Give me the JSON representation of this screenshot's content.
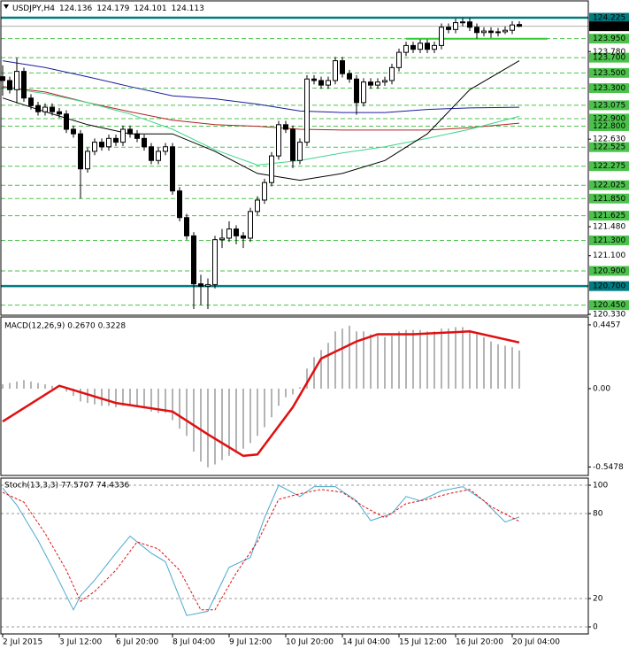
{
  "chart_data": [
    {
      "type": "candlestick",
      "title": "USDJPY,H4",
      "categories": [
        "2 Jul 2015",
        null,
        null,
        null,
        null,
        null,
        null,
        null,
        "3 Jul 12:00",
        null,
        null,
        null,
        null,
        null,
        null,
        null,
        "6 Jul 20:00",
        null,
        null,
        null,
        null,
        null,
        null,
        null,
        "8 Jul 04:00",
        null,
        null,
        null,
        null,
        null,
        null,
        null,
        "9 Jul 12:00",
        null,
        null,
        null,
        null,
        null,
        null,
        null,
        "10 Jul 20:00",
        null,
        null,
        null,
        null,
        null,
        null,
        null,
        "14 Jul 04:00",
        null,
        null,
        null,
        null,
        null,
        null,
        null,
        "15 Jul 12:00",
        null,
        null,
        null,
        null,
        null,
        null,
        null,
        "16 Jul 20:00",
        null,
        null,
        null,
        null,
        null,
        null,
        null,
        "20 Jul 04:00",
        null
      ],
      "open": [
        123.45,
        123.4,
        123.28,
        123.52,
        123.17,
        123.07,
        122.99,
        123.05,
        122.99,
        122.96,
        122.76,
        122.7,
        122.24,
        122.47,
        122.59,
        122.53,
        122.64,
        122.59,
        122.76,
        122.7,
        122.64,
        122.53,
        122.35,
        122.47,
        122.53,
        121.95,
        121.6,
        121.36,
        120.73,
        120.7,
        120.72,
        121.31,
        121.33,
        121.45,
        121.36,
        121.33,
        121.68,
        121.83,
        122.06,
        122.41,
        122.82,
        122.76,
        122.35,
        122.59,
        123.42,
        123.4,
        123.34,
        123.4,
        123.66,
        123.49,
        123.42,
        123.11,
        123.38,
        123.34,
        123.38,
        123.4,
        123.57,
        123.77,
        123.86,
        123.81,
        123.89,
        123.81,
        123.86,
        124.1,
        124.07,
        124.16,
        124.17,
        124.1,
        124.03,
        124.05,
        124.03,
        124.04,
        124.06,
        124.136
      ],
      "high": [
        123.6,
        123.45,
        123.7,
        123.57,
        123.22,
        123.12,
        123.1,
        123.1,
        123.04,
        123.01,
        122.81,
        122.75,
        122.52,
        122.64,
        122.64,
        122.69,
        122.69,
        122.81,
        122.81,
        122.75,
        122.69,
        122.58,
        122.52,
        122.58,
        122.58,
        122.0,
        121.65,
        121.41,
        120.85,
        120.8,
        121.36,
        121.45,
        121.55,
        121.5,
        121.41,
        121.73,
        121.88,
        122.11,
        122.46,
        122.87,
        122.87,
        122.81,
        122.64,
        123.47,
        123.47,
        123.45,
        123.45,
        123.71,
        123.71,
        123.54,
        123.47,
        123.43,
        123.43,
        123.43,
        123.45,
        123.62,
        123.82,
        123.91,
        123.91,
        123.94,
        123.94,
        123.91,
        124.15,
        124.15,
        124.21,
        124.22,
        124.22,
        124.15,
        124.1,
        124.1,
        124.09,
        124.11,
        124.18,
        124.179
      ],
      "low": [
        123.2,
        123.23,
        123.1,
        123.12,
        123.02,
        122.94,
        122.94,
        122.94,
        122.91,
        122.71,
        122.65,
        121.85,
        122.19,
        122.42,
        122.48,
        122.48,
        122.54,
        122.54,
        122.65,
        122.59,
        122.48,
        122.3,
        122.3,
        122.42,
        121.9,
        121.55,
        121.31,
        120.4,
        120.45,
        120.4,
        120.67,
        121.2,
        121.28,
        121.25,
        121.2,
        121.28,
        121.63,
        121.78,
        122.01,
        122.36,
        122.71,
        122.25,
        122.3,
        122.54,
        123.35,
        123.29,
        123.29,
        123.35,
        123.44,
        123.37,
        122.95,
        123.06,
        123.29,
        123.29,
        123.33,
        123.35,
        123.52,
        123.72,
        123.76,
        123.76,
        123.76,
        123.76,
        123.81,
        124.02,
        124.02,
        124.11,
        124.05,
        123.95,
        123.98,
        123.96,
        123.98,
        124.01,
        124.01,
        124.101
      ],
      "close": [
        123.4,
        123.28,
        123.52,
        123.17,
        123.07,
        122.99,
        123.05,
        122.99,
        122.96,
        122.76,
        122.7,
        122.24,
        122.47,
        122.59,
        122.53,
        122.64,
        122.59,
        122.76,
        122.7,
        122.64,
        122.53,
        122.35,
        122.47,
        122.53,
        121.95,
        121.6,
        121.36,
        120.73,
        120.7,
        120.72,
        121.31,
        121.33,
        121.45,
        121.36,
        121.33,
        121.68,
        121.83,
        122.06,
        122.41,
        122.82,
        122.76,
        122.35,
        122.59,
        123.42,
        123.4,
        123.34,
        123.4,
        123.66,
        123.49,
        123.42,
        123.11,
        123.38,
        123.34,
        123.38,
        123.4,
        123.57,
        123.77,
        123.86,
        123.81,
        123.89,
        123.81,
        123.86,
        124.1,
        124.07,
        124.16,
        124.17,
        124.1,
        124.03,
        124.05,
        124.03,
        124.04,
        124.06,
        124.13,
        124.113
      ],
      "ylim": [
        120.318,
        124.446
      ],
      "yticks": [
        {
          "value": 123.78,
          "label": "123.780"
        },
        {
          "value": 122.63,
          "label": "122.630"
        },
        {
          "value": 121.48,
          "label": "121.480"
        },
        {
          "value": 121.1,
          "label": "121.100"
        },
        {
          "value": 120.33,
          "label": "120.330"
        }
      ],
      "levels": [
        {
          "value": 124.225,
          "label": "124.225",
          "color": "#007b80",
          "style": "solid"
        },
        {
          "value": 123.95,
          "label": "123.950",
          "color": "#4cc24c",
          "style": "dash"
        },
        {
          "value": 123.7,
          "label": "123.700",
          "color": "#4cc24c",
          "style": "dash"
        },
        {
          "value": 123.5,
          "label": "123.500",
          "color": "#4cc24c",
          "style": "dash"
        },
        {
          "value": 123.3,
          "label": "123.300",
          "color": "#4cc24c",
          "style": "dash"
        },
        {
          "value": 123.075,
          "label": "123.075",
          "color": "#4cc24c",
          "style": "dash"
        },
        {
          "value": 122.9,
          "label": "122.900",
          "color": "#4cc24c",
          "style": "dash"
        },
        {
          "value": 122.8,
          "label": "122.800",
          "color": "#4cc24c",
          "style": "dash"
        },
        {
          "value": 122.525,
          "label": "122.525",
          "color": "#4cc24c",
          "style": "dash"
        },
        {
          "value": 122.275,
          "label": "122.275",
          "color": "#4cc24c",
          "style": "dash"
        },
        {
          "value": 122.025,
          "label": "122.025",
          "color": "#4cc24c",
          "style": "dash"
        },
        {
          "value": 121.85,
          "label": "121.850",
          "color": "#4cc24c",
          "style": "dash"
        },
        {
          "value": 121.625,
          "label": "121.625",
          "color": "#4cc24c",
          "style": "dash"
        },
        {
          "value": 121.3,
          "label": "121.300",
          "color": "#4cc24c",
          "style": "dash"
        },
        {
          "value": 120.9,
          "label": "120.900",
          "color": "#4cc24c",
          "style": "dash"
        },
        {
          "value": 120.7,
          "label": "120.700",
          "color": "#007b80",
          "style": "solid"
        },
        {
          "value": 120.45,
          "label": "120.450",
          "color": "#4cc24c",
          "style": "dash"
        }
      ],
      "segments": [
        {
          "x": [
            57,
            77
          ],
          "values": [
            123.95,
            123.95
          ],
          "color": "#33cc33"
        }
      ],
      "overlays": [
        {
          "color": "#1c1c9c",
          "x": [
            0,
            6,
            12,
            18,
            24,
            30,
            36,
            42,
            48,
            54,
            60,
            66,
            73
          ],
          "values": [
            123.66,
            123.57,
            123.45,
            123.32,
            123.2,
            123.16,
            123.09,
            123.0,
            122.98,
            122.98,
            123.02,
            123.04,
            123.05
          ]
        },
        {
          "color": "#b22222",
          "x": [
            0,
            6,
            12,
            18,
            24,
            30,
            36,
            42,
            48,
            54,
            60,
            66,
            73
          ],
          "values": [
            123.32,
            123.25,
            123.11,
            122.99,
            122.88,
            122.82,
            122.8,
            122.76,
            122.75,
            122.75,
            122.75,
            122.78,
            122.84
          ]
        },
        {
          "color": "#3cd68c",
          "x": [
            0,
            6,
            12,
            18,
            24,
            30,
            36,
            42,
            48,
            54,
            60,
            66,
            73
          ],
          "values": [
            123.31,
            123.23,
            123.11,
            122.96,
            122.76,
            122.49,
            122.29,
            122.35,
            122.45,
            122.53,
            122.64,
            122.76,
            122.93
          ]
        },
        {
          "color": "#000000",
          "x": [
            0,
            6,
            12,
            18,
            24,
            30,
            36,
            42,
            48,
            54,
            60,
            66,
            73
          ],
          "values": [
            123.17,
            122.99,
            122.82,
            122.7,
            122.7,
            122.47,
            122.18,
            122.09,
            122.18,
            122.35,
            122.7,
            123.28,
            123.66
          ]
        }
      ]
    },
    {
      "type": "macd",
      "title": "MACD(12,26,9) 0.2670 0.3228",
      "values": [
        0.03,
        0.04,
        0.05,
        0.06,
        0.05,
        0.04,
        0.03,
        0.02,
        0.0,
        -0.02,
        -0.05,
        -0.09,
        -0.1,
        -0.11,
        -0.12,
        -0.12,
        -0.13,
        -0.12,
        -0.12,
        -0.13,
        -0.14,
        -0.16,
        -0.17,
        -0.17,
        -0.22,
        -0.28,
        -0.33,
        -0.44,
        -0.51,
        -0.55,
        -0.53,
        -0.5,
        -0.47,
        -0.45,
        -0.42,
        -0.38,
        -0.33,
        -0.27,
        -0.2,
        -0.12,
        -0.06,
        -0.04,
        0.01,
        0.14,
        0.22,
        0.27,
        0.32,
        0.4,
        0.42,
        0.44,
        0.4,
        0.4,
        0.38,
        0.37,
        0.36,
        0.37,
        0.4,
        0.41,
        0.41,
        0.41,
        0.4,
        0.4,
        0.42,
        0.42,
        0.43,
        0.43,
        0.41,
        0.38,
        0.36,
        0.33,
        0.31,
        0.3,
        0.29,
        0.267
      ],
      "color": "#b4b4b4",
      "signal": {
        "color": "#e01010",
        "x": [
          0,
          8,
          16,
          24,
          29,
          34,
          36,
          41,
          45,
          50,
          53,
          58,
          66,
          73
        ],
        "values": [
          -0.23,
          0.02,
          -0.1,
          -0.16,
          -0.32,
          -0.47,
          -0.46,
          -0.13,
          0.21,
          0.33,
          0.38,
          0.38,
          0.4,
          0.3228
        ]
      },
      "ylim": [
        -0.607,
        0.501
      ],
      "yticks": [
        0.4457,
        {
          "value": 0,
          "label": "0.00"
        },
        -0.5478
      ]
    },
    {
      "type": "stochastic",
      "title": "Stoch(13,3,3) 77.5707 74.4336",
      "series": [
        {
          "color": "#4aa8cf",
          "dash": false,
          "x": [
            0,
            2,
            5,
            7,
            10,
            11,
            13,
            16,
            18,
            21,
            23,
            26,
            29,
            32,
            35,
            37,
            39,
            42,
            44,
            47,
            50,
            52,
            55,
            57,
            59,
            62,
            65,
            68,
            71,
            73
          ],
          "values": [
            98,
            86,
            61,
            42,
            12,
            22,
            33,
            52,
            64,
            52,
            46,
            8,
            11,
            42,
            49,
            77,
            100,
            92,
            99,
            99,
            89,
            75,
            80,
            92,
            89,
            96,
            99,
            89,
            74,
            77.5707
          ]
        },
        {
          "color": "#e01010",
          "dash": true,
          "x": [
            0,
            3,
            6,
            9,
            11,
            13,
            16,
            19,
            22,
            25,
            28,
            30,
            33,
            36,
            39,
            42,
            45,
            48,
            51,
            54,
            57,
            60,
            63,
            66,
            69,
            73
          ],
          "values": [
            95,
            88,
            66,
            40,
            18,
            25,
            40,
            60,
            55,
            40,
            12,
            12,
            38,
            60,
            90,
            94,
            97,
            95,
            85,
            77,
            87,
            90,
            94,
            97,
            85,
            74.4336
          ]
        }
      ],
      "ylim": [
        -5,
        105
      ],
      "yticks": [
        100,
        80,
        20,
        0
      ],
      "grid": true
    }
  ]
}
